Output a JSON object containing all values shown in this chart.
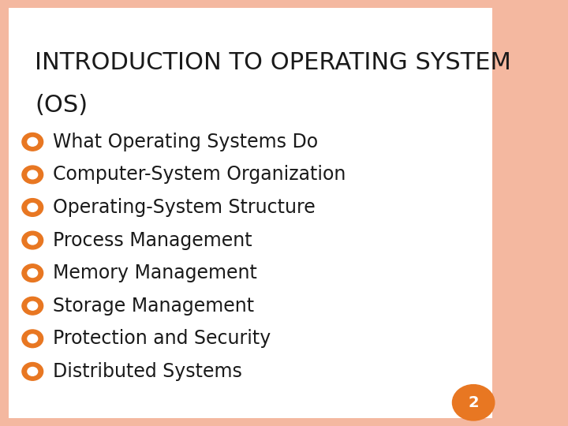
{
  "title_line1": "INTRODUCTION TO OPERATING SYSTEM",
  "title_line2": "(OS)",
  "title_fontsize": 22,
  "title_color": "#1a1a1a",
  "bullet_items": [
    "What Operating Systems Do",
    "Computer-System Organization",
    "Operating-System Structure",
    "Process Management",
    "Memory Management",
    "Storage Management",
    "Protection and Security",
    "Distributed Systems"
  ],
  "bullet_fontsize": 17,
  "bullet_color": "#1a1a1a",
  "bullet_marker_color": "#e87722",
  "background_color": "#ffffff",
  "border_color": "#f4b8a0",
  "page_number": "2",
  "page_number_bg": "#e87722",
  "page_number_color": "#ffffff",
  "page_number_fontsize": 14
}
